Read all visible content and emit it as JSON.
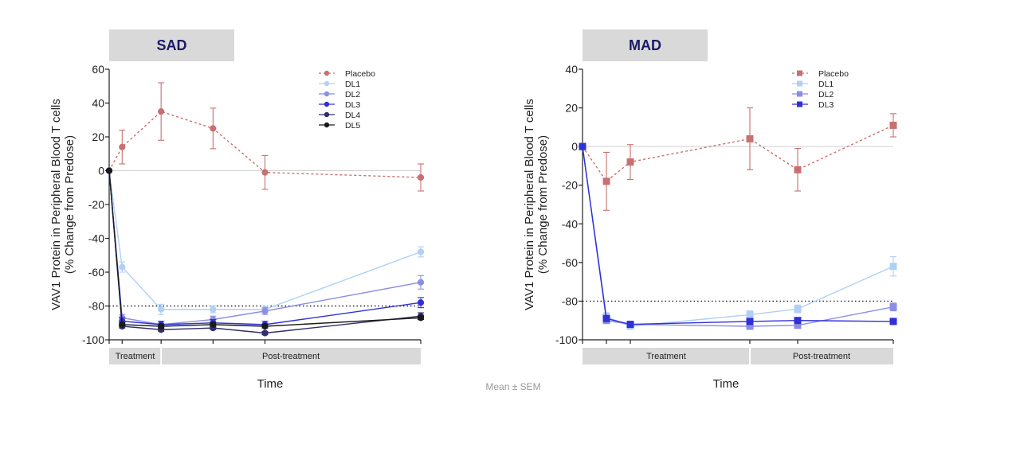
{
  "footnote": "Mean ± SEM",
  "chart_data": [
    {
      "type": "line",
      "title": "SAD",
      "ylabel_line1": "VAV1 Protein in Peripheral Blood T cells",
      "ylabel_line2": "(% Change from Predose)",
      "xlabel": "Time",
      "ylim": [
        -100,
        60
      ],
      "yticks": [
        "60",
        "40",
        "20",
        "0",
        "-20",
        "-40",
        "-60",
        "-80",
        "-100"
      ],
      "reference_line": -80,
      "x": [
        0,
        1,
        4,
        8,
        12,
        24
      ],
      "phases": [
        {
          "label": "Treatment",
          "from": 0,
          "to": 4
        },
        {
          "label": "Post-treatment",
          "from": 4,
          "to": 24
        }
      ],
      "legend_position": "top-right",
      "series": [
        {
          "name": "Placebo",
          "color": "#c87070",
          "style": "dashed",
          "marker": "circle",
          "x": [
            0,
            1,
            4,
            8,
            12,
            24
          ],
          "values": [
            0,
            14,
            35,
            25,
            -1,
            -4
          ],
          "err": [
            0,
            10,
            17,
            12,
            10,
            8
          ]
        },
        {
          "name": "DL1",
          "color": "#b0d0f4",
          "style": "solid",
          "marker": "circle",
          "x": [
            0,
            1,
            4,
            8,
            12,
            24
          ],
          "values": [
            0,
            -57,
            -82,
            -82,
            -82,
            -48
          ],
          "err": [
            0,
            3,
            3,
            2,
            2,
            3
          ]
        },
        {
          "name": "DL2",
          "color": "#8c8ee4",
          "style": "solid",
          "marker": "circle",
          "x": [
            0,
            1,
            4,
            8,
            12,
            24
          ],
          "values": [
            0,
            -87,
            -91,
            -88,
            -83,
            -66
          ],
          "err": [
            0,
            2,
            2,
            2,
            2,
            4
          ]
        },
        {
          "name": "DL3",
          "color": "#3030d8",
          "style": "solid",
          "marker": "circle",
          "x": [
            0,
            1,
            4,
            8,
            12,
            24
          ],
          "values": [
            0,
            -89,
            -91,
            -90,
            -91,
            -78
          ],
          "err": [
            0,
            2,
            2,
            2,
            2,
            3
          ]
        },
        {
          "name": "DL4",
          "color": "#30306a",
          "style": "solid",
          "marker": "circle",
          "x": [
            0,
            1,
            4,
            8,
            12,
            24
          ],
          "values": [
            0,
            -92,
            -94,
            -93,
            -96,
            -86
          ],
          "err": [
            0,
            1,
            1,
            1,
            1,
            2
          ]
        },
        {
          "name": "DL5",
          "color": "#1a1a1a",
          "style": "solid",
          "marker": "circle",
          "x": [
            0,
            1,
            4,
            8,
            12,
            24
          ],
          "values": [
            0,
            -91,
            -92,
            -91,
            -92,
            -87
          ],
          "err": [
            0,
            1,
            1,
            1,
            1,
            1
          ]
        }
      ]
    },
    {
      "type": "line",
      "title": "MAD",
      "ylabel_line1": "VAV1 Protein in Peripheral Blood T cells",
      "ylabel_line2": "(% Change from Predose)",
      "xlabel": "Time",
      "ylim": [
        -100,
        40
      ],
      "yticks": [
        "40",
        "20",
        "0",
        "-20",
        "-40",
        "-60",
        "-80",
        "-100"
      ],
      "reference_line": -80,
      "x": [
        0,
        2,
        4,
        14,
        18,
        26
      ],
      "phases": [
        {
          "label": "Treatment",
          "from": 0,
          "to": 14
        },
        {
          "label": "Post-treatment",
          "from": 14,
          "to": 26
        }
      ],
      "legend_position": "top-right",
      "series": [
        {
          "name": "Placebo",
          "color": "#c87070",
          "style": "dashed",
          "marker": "square",
          "x": [
            0,
            2,
            4,
            14,
            18,
            26
          ],
          "values": [
            0,
            -18,
            -8,
            4,
            -12,
            11
          ],
          "err": [
            0,
            15,
            9,
            16,
            11,
            6
          ]
        },
        {
          "name": "DL1",
          "color": "#b0d0f4",
          "style": "solid",
          "marker": "square",
          "x": [
            0,
            2,
            4,
            14,
            18,
            26
          ],
          "values": [
            0,
            -88,
            -93,
            -87,
            -84,
            -62
          ],
          "err": [
            0,
            2,
            1,
            2,
            2,
            5
          ]
        },
        {
          "name": "DL2",
          "color": "#8c8ee4",
          "style": "solid",
          "marker": "square",
          "x": [
            0,
            2,
            4,
            14,
            18,
            26
          ],
          "values": [
            0,
            -90,
            -92,
            -93,
            -92.5,
            -83
          ],
          "err": [
            0,
            1,
            1,
            1,
            1,
            2
          ]
        },
        {
          "name": "DL3",
          "color": "#3030d8",
          "style": "solid",
          "marker": "square",
          "x": [
            0,
            2,
            4,
            14,
            18,
            26
          ],
          "values": [
            0,
            -89,
            -92,
            -90.5,
            -90,
            -90.5
          ],
          "err": [
            0,
            1,
            1,
            1,
            1,
            1
          ]
        }
      ]
    }
  ]
}
